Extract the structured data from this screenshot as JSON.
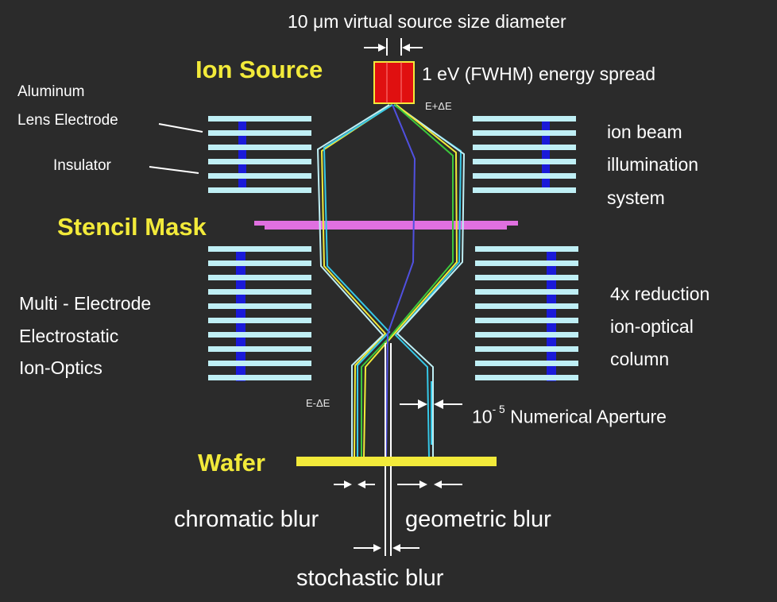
{
  "header": {
    "source_size": "10 μm virtual source size diameter",
    "energy_spread": "1 eV (FWHM) energy spread"
  },
  "sections": {
    "ion_source": "Ion Source",
    "stencil_mask": "Stencil  Mask",
    "wafer": "Wafer"
  },
  "left_labels": {
    "aluminum_line1": "Aluminum",
    "aluminum_line2": "Lens Electrode",
    "insulator": "Insulator",
    "multi_line1": "Multi - Electrode",
    "multi_line2": "Electrostatic",
    "multi_line3": "Ion-Optics"
  },
  "right_labels": {
    "illum_line1": "ion beam",
    "illum_line2": "illumination",
    "illum_line3": "system",
    "reduction_line1": "4x reduction",
    "reduction_line2": "ion-optical",
    "reduction_line3": "column"
  },
  "energy": {
    "plus": "E+ΔE",
    "minus": "E-ΔE"
  },
  "aperture": {
    "base": "10",
    "exponent": "- 5",
    "label": "Numerical Aperture"
  },
  "blur": {
    "chromatic": "chromatic blur",
    "geometric": "geometric blur",
    "stochastic": "stochastic blur"
  },
  "colors": {
    "background": "#2b2b2b",
    "electrode": "#bfeff5",
    "insulator": "#1a1ad8",
    "ion_source": "#e01010",
    "stencil_mask": "#e070e0",
    "wafer": "#f2ea3a",
    "label_yellow": "#f2ea3a",
    "beam_cyan": "#35c8e8",
    "beam_yellow": "#f2ea3a",
    "beam_green": "#3cc83c",
    "beam_blue": "#5050e0"
  }
}
